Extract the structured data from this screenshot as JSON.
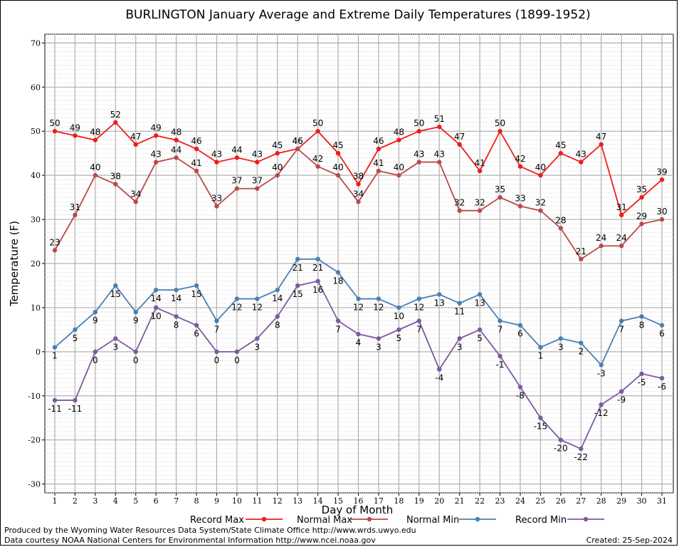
{
  "chart_data": {
    "type": "line",
    "title": "BURLINGTON January Average and Extreme Daily Temperatures (1899-1952)",
    "xlabel": "Day of Month",
    "ylabel": "Temperature (F)",
    "x": [
      1,
      2,
      3,
      4,
      5,
      6,
      7,
      8,
      9,
      10,
      11,
      12,
      13,
      14,
      15,
      16,
      17,
      18,
      19,
      20,
      21,
      22,
      23,
      24,
      25,
      26,
      27,
      28,
      29,
      30,
      31
    ],
    "ylim": [
      -32,
      72
    ],
    "yticks": [
      -30,
      -20,
      -10,
      0,
      10,
      20,
      30,
      40,
      50,
      60,
      70
    ],
    "grid": true,
    "legend_position": "bottom",
    "series": [
      {
        "name": "Record Max",
        "color": "#ee1c1c",
        "label_pos": "above",
        "values": [
          50,
          49,
          48,
          52,
          47,
          49,
          48,
          46,
          43,
          44,
          43,
          45,
          46,
          50,
          45,
          38,
          46,
          48,
          50,
          51,
          47,
          41,
          50,
          42,
          40,
          45,
          43,
          47,
          31,
          35,
          39
        ]
      },
      {
        "name": "Normal Max",
        "color": "#b94a4a",
        "label_pos": "above",
        "values": [
          23,
          31,
          40,
          38,
          34,
          43,
          44,
          41,
          33,
          37,
          37,
          40,
          46,
          42,
          40,
          34,
          41,
          40,
          43,
          43,
          32,
          32,
          35,
          33,
          32,
          28,
          21,
          24,
          24,
          29,
          30
        ]
      },
      {
        "name": "Normal Min",
        "color": "#4a7fb4",
        "label_pos": "below",
        "values": [
          1,
          5,
          9,
          15,
          9,
          14,
          14,
          15,
          7,
          12,
          12,
          14,
          21,
          21,
          18,
          12,
          12,
          10,
          12,
          13,
          11,
          13,
          7,
          6,
          1,
          3,
          2,
          -3,
          7,
          8,
          6
        ]
      },
      {
        "name": "Record Min",
        "color": "#7d5a9e",
        "label_pos": "below",
        "values": [
          -11,
          -11,
          0,
          3,
          0,
          10,
          8,
          6,
          0,
          0,
          3,
          8,
          15,
          16,
          7,
          4,
          3,
          5,
          7,
          -4,
          3,
          5,
          -1,
          -8,
          -15,
          -20,
          -22,
          -12,
          -9,
          -5,
          -6
        ]
      }
    ]
  },
  "footer": {
    "line1": "Produced by the Wyoming Water Resources Data System/State Climate Office http://www.wrds.uwyo.edu",
    "line2": "Data courtesy NOAA National Centers for Environmental Information http://www.ncei.noaa.gov",
    "created": "Created:  25-Sep-2024"
  }
}
